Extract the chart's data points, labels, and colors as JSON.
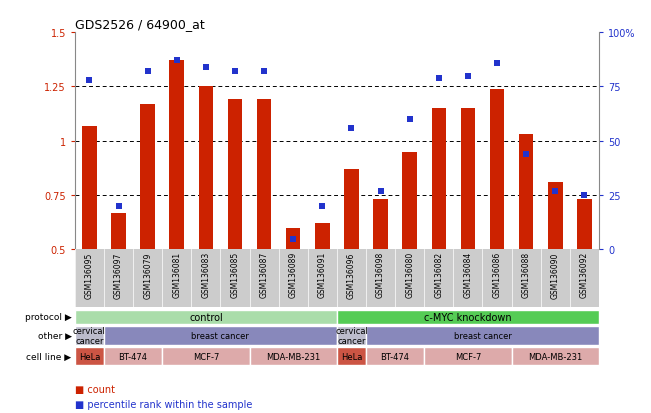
{
  "title": "GDS2526 / 64900_at",
  "samples": [
    "GSM136095",
    "GSM136097",
    "GSM136079",
    "GSM136081",
    "GSM136083",
    "GSM136085",
    "GSM136087",
    "GSM136089",
    "GSM136091",
    "GSM136096",
    "GSM136098",
    "GSM136080",
    "GSM136082",
    "GSM136084",
    "GSM136086",
    "GSM136088",
    "GSM136090",
    "GSM136092"
  ],
  "counts": [
    1.07,
    0.67,
    1.17,
    1.37,
    1.25,
    1.19,
    1.19,
    0.6,
    0.62,
    0.87,
    0.73,
    0.95,
    1.15,
    1.15,
    1.24,
    1.03,
    0.81,
    0.73
  ],
  "percentiles": [
    78,
    20,
    82,
    87,
    84,
    82,
    82,
    5,
    20,
    56,
    27,
    60,
    79,
    80,
    86,
    44,
    27,
    25
  ],
  "ylim_left": [
    0.5,
    1.5
  ],
  "ylim_right": [
    0,
    100
  ],
  "yticks_left": [
    0.5,
    0.75,
    1.0,
    1.25,
    1.5
  ],
  "ytick_labels_left": [
    "0.5",
    "0.75",
    "1",
    "1.25",
    "1.5"
  ],
  "yticks_right": [
    0,
    25,
    50,
    75,
    100
  ],
  "ytick_labels_right": [
    "0",
    "25",
    "50",
    "75",
    "100%"
  ],
  "bar_color": "#cc2200",
  "dot_color": "#2233cc",
  "tickbg_color": "#cccccc",
  "proto_segments": [
    {
      "label": "control",
      "start": 0,
      "end": 9,
      "color": "#aaddaa"
    },
    {
      "label": "c-MYC knockdown",
      "start": 9,
      "end": 18,
      "color": "#55cc55"
    }
  ],
  "other_segments": [
    {
      "label": "cervical\ncancer",
      "start": 0,
      "end": 1,
      "color": "#bbbbcc"
    },
    {
      "label": "breast cancer",
      "start": 1,
      "end": 9,
      "color": "#8888bb"
    },
    {
      "label": "cervical\ncancer",
      "start": 9,
      "end": 10,
      "color": "#bbbbcc"
    },
    {
      "label": "breast cancer",
      "start": 10,
      "end": 18,
      "color": "#8888bb"
    }
  ],
  "cell_segments": [
    {
      "label": "HeLa",
      "start": 0,
      "end": 1,
      "color": "#cc5544"
    },
    {
      "label": "BT-474",
      "start": 1,
      "end": 3,
      "color": "#ddaaaa"
    },
    {
      "label": "MCF-7",
      "start": 3,
      "end": 6,
      "color": "#ddaaaa"
    },
    {
      "label": "MDA-MB-231",
      "start": 6,
      "end": 9,
      "color": "#ddaaaa"
    },
    {
      "label": "HeLa",
      "start": 9,
      "end": 10,
      "color": "#cc5544"
    },
    {
      "label": "BT-474",
      "start": 10,
      "end": 12,
      "color": "#ddaaaa"
    },
    {
      "label": "MCF-7",
      "start": 12,
      "end": 15,
      "color": "#ddaaaa"
    },
    {
      "label": "MDA-MB-231",
      "start": 15,
      "end": 18,
      "color": "#ddaaaa"
    }
  ],
  "row_labels": [
    "protocol",
    "other",
    "cell line"
  ],
  "hgrid_values": [
    0.75,
    1.0,
    1.25
  ],
  "legend_items": [
    {
      "label": "count",
      "color": "#cc2200"
    },
    {
      "label": "percentile rank within the sample",
      "color": "#2233cc"
    }
  ]
}
